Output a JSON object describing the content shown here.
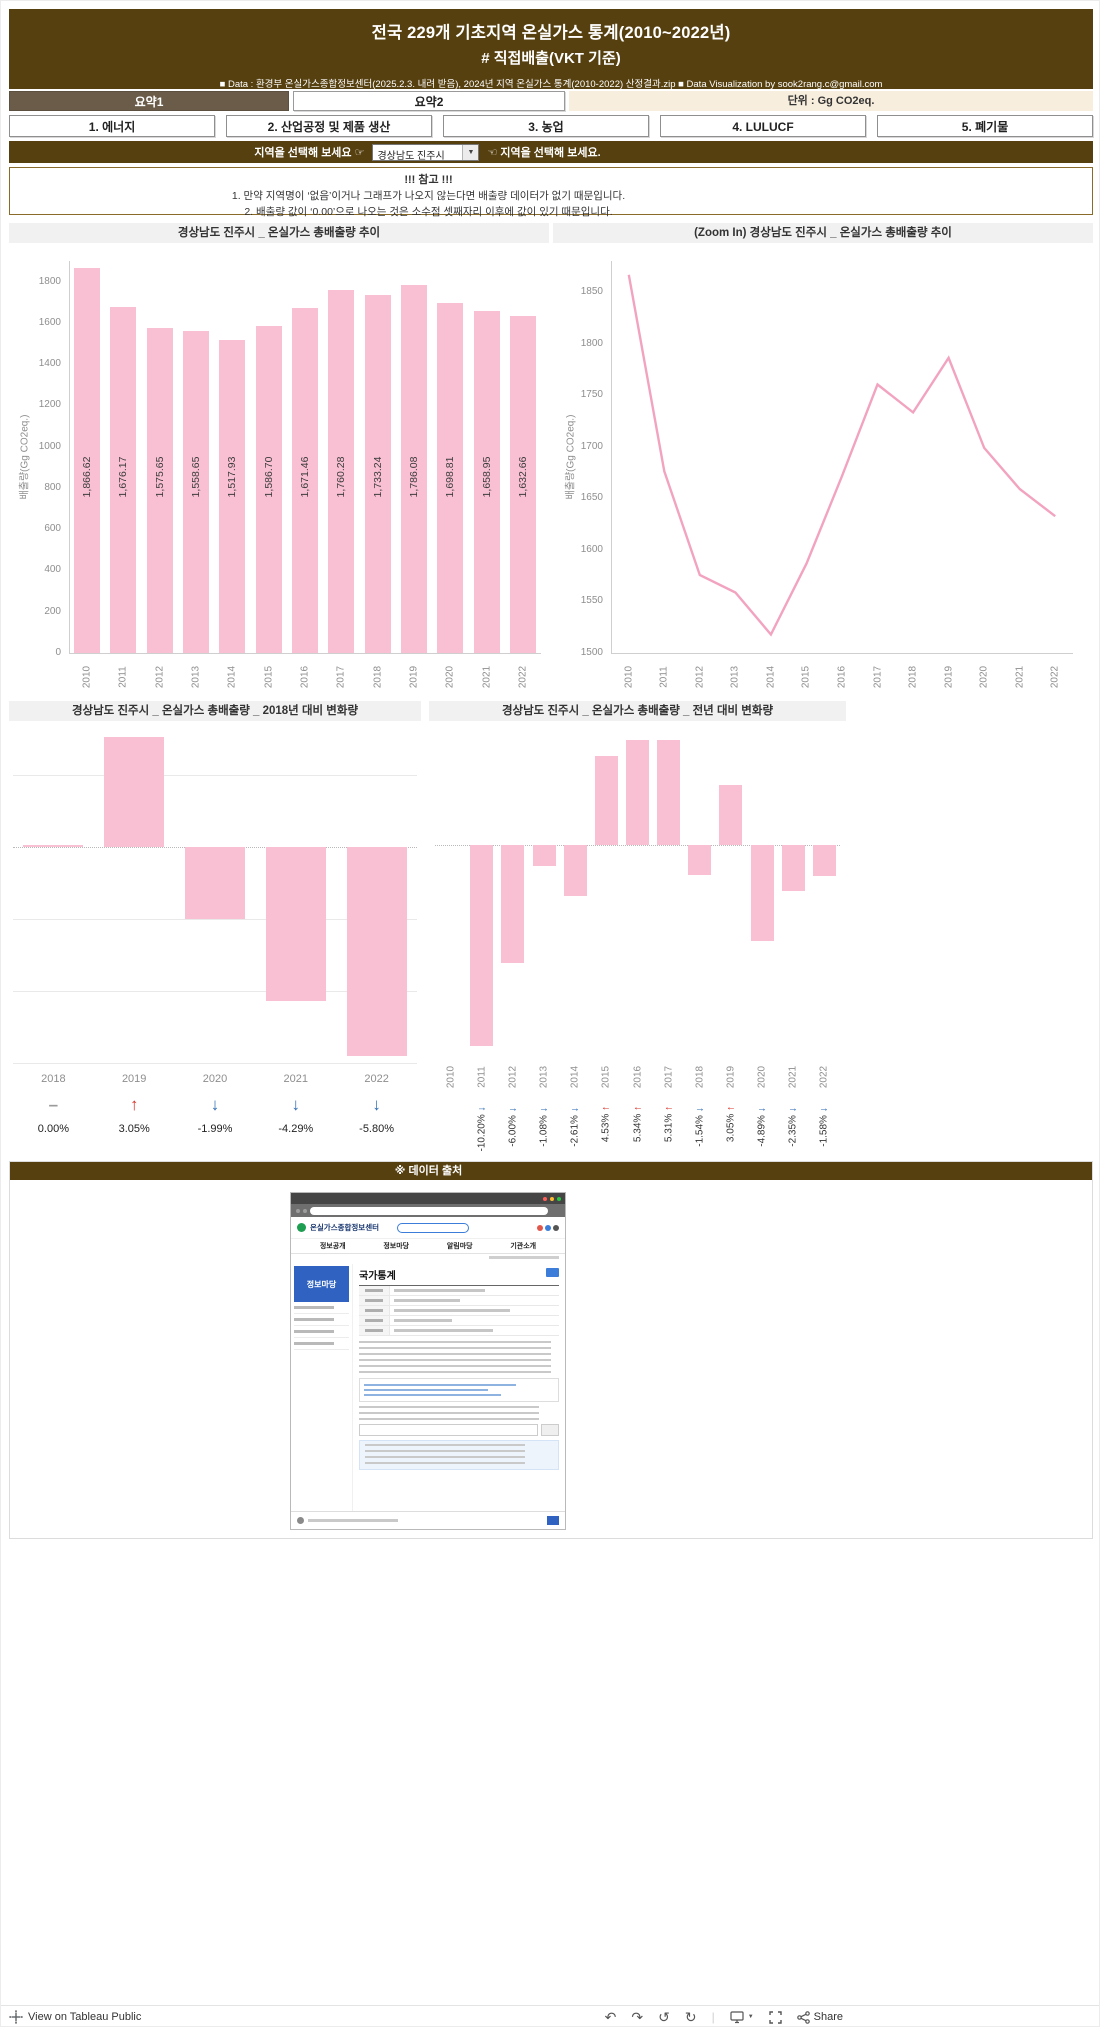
{
  "colors": {
    "brown": "#564010",
    "tab_active_bg": "#6a5c49",
    "unit_bg": "#f7eedd",
    "bar_pink": "#f9c0d4",
    "line_pink": "#f2a3c0",
    "arrow_up": "#d93025",
    "arrow_down": "#2f6db5"
  },
  "header": {
    "title_line1": "전국 229개 기초지역 온실가스 통계(2010~2022년)",
    "title_line2": "# 직접배출(VKT 기준)",
    "data_note": "■ Data : 환경부 온실가스종합정보센터(2025.2.3. 내려 받음), 2024년 지역 온실가스 통계(2010-2022) 산정결과.zip    ■ Data Visualization by sook2rang.c@gmail.com"
  },
  "tabs": {
    "summary1": "요약1",
    "summary2": "요약2",
    "unit": "단위 : Gg CO2eq."
  },
  "category_tabs": [
    "1. 에너지",
    "2. 산업공정 및 제품 생산",
    "3. 농업",
    "4. LULUCF",
    "5. 폐기물"
  ],
  "region_selector": {
    "left_label": "지역을 선택해 보세요 ☞",
    "value": "경상남도 진주시",
    "right_label": "☜ 지역을 선택해 보세요."
  },
  "notice": {
    "title": "!!! 참고 !!!",
    "line1": "1. 만약 지역명이 ‘없음’이거나 그래프가 나오지 않는다면 배출량 데이터가 없기 때문입니다.",
    "line2": "2. 배출량 값이 ‘0.00’으로 나오는 것은 소수점 셋째자리 이후에 값이 있기 때문입니다."
  },
  "chart_data": [
    {
      "type": "bar",
      "title": "경상남도 진주시 _ 온실가스 총배출량 추이",
      "ylabel": "배출량(Gg CO2eq.)",
      "categories": [
        "2010",
        "2011",
        "2012",
        "2013",
        "2014",
        "2015",
        "2016",
        "2017",
        "2018",
        "2019",
        "2020",
        "2021",
        "2022"
      ],
      "values": [
        1866.62,
        1676.17,
        1575.65,
        1558.65,
        1517.93,
        1586.7,
        1671.46,
        1760.28,
        1733.24,
        1786.08,
        1698.81,
        1658.95,
        1632.66
      ],
      "labels": [
        "1,866.62",
        "1,676.17",
        "1,575.65",
        "1,558.65",
        "1,517.93",
        "1,586.70",
        "1,671.46",
        "1,760.28",
        "1,733.24",
        "1,786.08",
        "1,698.81",
        "1,658.95",
        "1,632.66"
      ],
      "ylim": [
        0,
        1900
      ],
      "yticks": [
        0,
        200,
        400,
        600,
        800,
        1000,
        1200,
        1400,
        1600,
        1800
      ],
      "bar_color": "#f9c0d4",
      "grid": false
    },
    {
      "type": "line",
      "title": "(Zoom In) 경상남도 진주시 _ 온실가스 총배출량 추이",
      "ylabel": "배출량(Gg CO2eq.)",
      "categories": [
        "2010",
        "2011",
        "2012",
        "2013",
        "2014",
        "2015",
        "2016",
        "2017",
        "2018",
        "2019",
        "2020",
        "2021",
        "2022"
      ],
      "values": [
        1866.62,
        1676.17,
        1575.65,
        1558.65,
        1517.93,
        1586.7,
        1671.46,
        1760.28,
        1733.24,
        1786.08,
        1698.81,
        1658.95,
        1632.66
      ],
      "ylim": [
        1500,
        1880
      ],
      "yticks": [
        1500,
        1550,
        1600,
        1650,
        1700,
        1750,
        1800,
        1850
      ],
      "line_color": "#f2a3c0",
      "grid": false
    },
    {
      "type": "bar",
      "title": "경상남도 진주시 _ 온실가스 총배출량 _ 2018년 대비 변화량",
      "baseline_year": "2018",
      "categories": [
        "2018",
        "2019",
        "2020",
        "2021",
        "2022"
      ],
      "values": [
        0.0,
        3.05,
        -1.99,
        -4.29,
        -5.8
      ],
      "labels": [
        "0.00%",
        "3.05%",
        "-1.99%",
        "-4.29%",
        "-5.80%"
      ],
      "directions": [
        "none",
        "up",
        "down",
        "down",
        "down"
      ],
      "ylim": [
        3.3,
        -6
      ],
      "zero_line": true,
      "bar_color": "#f9c0d4",
      "grid": true
    },
    {
      "type": "bar",
      "title": "경상남도 진주시 _ 온실가스 총배출량 _ 전년 대비 변화량",
      "categories": [
        "2010",
        "2011",
        "2012",
        "2013",
        "2014",
        "2015",
        "2016",
        "2017",
        "2018",
        "2019",
        "2020",
        "2021",
        "2022"
      ],
      "values": [
        null,
        -10.2,
        -6.0,
        -1.08,
        -2.61,
        4.53,
        5.34,
        5.31,
        -1.54,
        3.05,
        -4.89,
        -2.35,
        -1.58
      ],
      "labels": [
        "",
        "-10.20%",
        "-6.00%",
        "-1.08%",
        "-2.61%",
        "4.53%",
        "5.34%",
        "5.31%",
        "-1.54%",
        "3.05%",
        "-4.89%",
        "-2.35%",
        "-1.58%"
      ],
      "ylim": [
        6.3,
        -11
      ],
      "zero_line": true,
      "bar_color": "#f9c0d4",
      "grid": false
    }
  ],
  "source_section": {
    "title": "※ 데이터 출처",
    "screenshot": {
      "site_name": "온실가스종합정보센터",
      "nav": [
        "정보공개",
        "정보마당",
        "알림마당",
        "기관소개"
      ],
      "sidebar_title": "정보마당",
      "page_title": "국가통계"
    }
  },
  "footer": {
    "view_label": "View on Tableau Public",
    "share_label": "Share"
  }
}
